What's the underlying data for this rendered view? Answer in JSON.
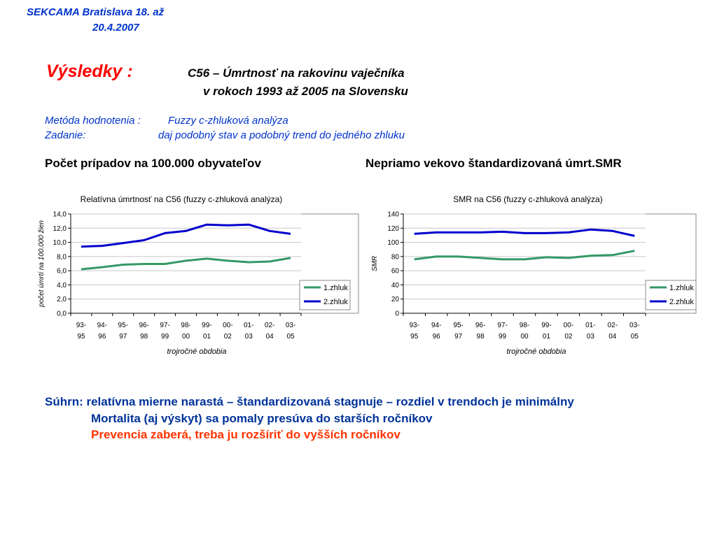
{
  "header": {
    "line1": "SEKCAMA  Bratislava 18. až",
    "line2": "20.4.2007"
  },
  "title": {
    "label": "Výsledky :",
    "line1": "C56 – Úmrtnosť na rakovinu vaječníka",
    "line2": "v rokoch 1993 až 2005 na Slovensku"
  },
  "method": {
    "label1": "Metóda hodnotenia :",
    "value1": "Fuzzy c-zhluková analýza",
    "label2": "Zadanie:",
    "value2": "daj podobný stav a podobný trend do jedného zhluku"
  },
  "subheads": {
    "left": "Počet prípadov na 100.000 obyvateľov",
    "right": "Nepriamo vekovo štandardizovaná úmrt.SMR"
  },
  "summary": {
    "line1": "Súhrn: relatívna mierne narastá – štandardizovaná stagnuje – rozdiel v trendoch je minimálny",
    "line2": "Mortalita (aj výskyt) sa pomaly presúva do starších ročníkov",
    "line3": "Prevencia zaberá, treba ju rozšíriť do vyšších ročníkov"
  },
  "colors": {
    "series1": "#339966",
    "series2": "#0000cc",
    "header": "#0033cc",
    "title": "#ff0000",
    "summary_blue": "#003399",
    "summary_red": "#ff3300"
  },
  "chart_data": [
    {
      "type": "line",
      "title": "Relatívna úmrtnosť na C56 (fuzzy c-zhluková analýza)",
      "xlabel": "trojročné obdobia",
      "ylabel": "počet úmrtí na 100.000 žien",
      "categories": [
        [
          "93-",
          "95"
        ],
        [
          "94-",
          "96"
        ],
        [
          "95-",
          "97"
        ],
        [
          "96-",
          "98"
        ],
        [
          "97-",
          "99"
        ],
        [
          "98-",
          "00"
        ],
        [
          "99-",
          "01"
        ],
        [
          "00-",
          "02"
        ],
        [
          "01-",
          "03"
        ],
        [
          "02-",
          "04"
        ],
        [
          "03-",
          "05"
        ]
      ],
      "ylim": [
        0,
        14
      ],
      "yticks": [
        "0,0",
        "2,0",
        "4,0",
        "6,0",
        "8,0",
        "10,0",
        "12,0",
        "14,0"
      ],
      "ytick_values": [
        0,
        2,
        4,
        6,
        8,
        10,
        12,
        14
      ],
      "grid": true,
      "legend": "right",
      "series": [
        {
          "name": "1.zhluk",
          "color": "#339966",
          "values": [
            6.2,
            6.5,
            6.85,
            6.95,
            6.95,
            7.4,
            7.7,
            7.4,
            7.2,
            7.3,
            7.8
          ]
        },
        {
          "name": "2.zhluk",
          "color": "#0000cc",
          "values": [
            9.4,
            9.5,
            9.9,
            10.3,
            11.3,
            11.6,
            12.5,
            12.4,
            12.5,
            11.6,
            11.2
          ]
        }
      ]
    },
    {
      "type": "line",
      "title": "SMR na C56 (fuzzy c-zhluková analýza)",
      "xlabel": "trojročné obdobia",
      "ylabel": "SMR",
      "categories": [
        [
          "93-",
          "95"
        ],
        [
          "94-",
          "96"
        ],
        [
          "95-",
          "97"
        ],
        [
          "96-",
          "98"
        ],
        [
          "97-",
          "99"
        ],
        [
          "98-",
          "00"
        ],
        [
          "99-",
          "01"
        ],
        [
          "00-",
          "02"
        ],
        [
          "01-",
          "03"
        ],
        [
          "02-",
          "04"
        ],
        [
          "03-",
          "05"
        ]
      ],
      "ylim": [
        0,
        140
      ],
      "yticks": [
        "0",
        "20",
        "40",
        "60",
        "80",
        "100",
        "120",
        "140"
      ],
      "ytick_values": [
        0,
        20,
        40,
        60,
        80,
        100,
        120,
        140
      ],
      "grid": true,
      "legend": "right",
      "series": [
        {
          "name": "1.zhluk",
          "color": "#339966",
          "values": [
            76,
            80,
            80,
            78,
            76,
            76,
            79,
            78,
            81,
            82,
            88
          ]
        },
        {
          "name": "2.zhluk",
          "color": "#0000cc",
          "values": [
            112,
            114,
            114,
            114,
            115,
            113,
            113,
            114,
            118,
            116,
            109
          ]
        }
      ]
    }
  ]
}
